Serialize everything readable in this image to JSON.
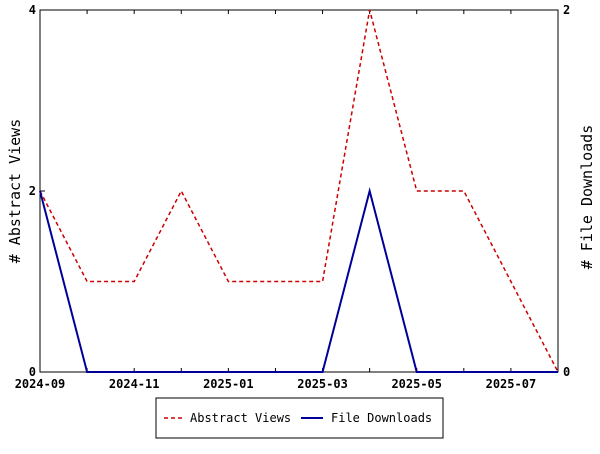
{
  "chart_data": {
    "type": "line",
    "x": [
      "2024-09",
      "2024-10",
      "2024-11",
      "2024-12",
      "2025-01",
      "2025-02",
      "2025-03",
      "2025-04",
      "2025-05",
      "2025-06",
      "2025-07",
      "2025-08"
    ],
    "x_ticks": [
      "2024-09",
      "2024-11",
      "2025-01",
      "2025-03",
      "2025-05",
      "2025-07"
    ],
    "ylabel_left": "# Abstract Views",
    "ylabel_right": "# File Downloads",
    "ylim_left": [
      0,
      4
    ],
    "ylim_right": [
      0,
      2
    ],
    "yticks_left": [
      "0",
      "2",
      "4"
    ],
    "yticks_right": [
      "0",
      "2"
    ],
    "series": [
      {
        "name": "Abstract Views",
        "axis": "left",
        "color": "#cc0000",
        "dash": true,
        "values": [
          2,
          1,
          1,
          2,
          1,
          1,
          1,
          4,
          2,
          2,
          1,
          0
        ]
      },
      {
        "name": "File Downloads",
        "axis": "right",
        "color": "#000099",
        "dash": false,
        "values": [
          1,
          0,
          0,
          0,
          0,
          0,
          0,
          1,
          0,
          0,
          0,
          0
        ]
      }
    ],
    "grid": false,
    "legend": "bottom-center"
  }
}
